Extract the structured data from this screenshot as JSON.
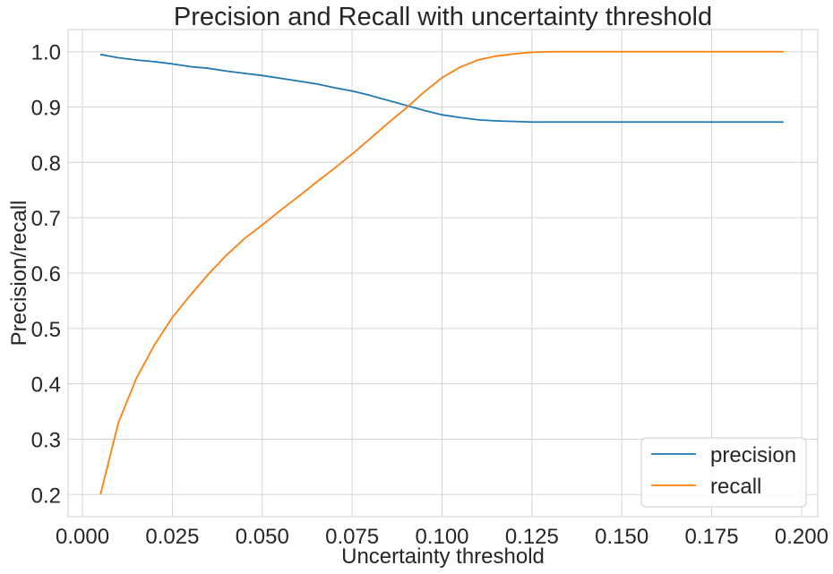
{
  "chart_data": {
    "type": "line",
    "title": "Precision and Recall with uncertainty threshold",
    "xlabel": "Uncertainty threshold",
    "ylabel": "Precision/recall",
    "xlim": [
      -0.004,
      0.2045
    ],
    "ylim": [
      0.16,
      1.04
    ],
    "xticks": [
      0.0,
      0.025,
      0.05,
      0.075,
      0.1,
      0.125,
      0.15,
      0.175,
      0.2
    ],
    "xtick_labels": [
      "0.000",
      "0.025",
      "0.050",
      "0.075",
      "0.100",
      "0.125",
      "0.150",
      "0.175",
      "0.200"
    ],
    "yticks": [
      0.2,
      0.3,
      0.4,
      0.5,
      0.6,
      0.7,
      0.8,
      0.9,
      1.0
    ],
    "ytick_labels": [
      "0.2",
      "0.3",
      "0.4",
      "0.5",
      "0.6",
      "0.7",
      "0.8",
      "0.9",
      "1.0"
    ],
    "grid": true,
    "legend_position": "lower-right",
    "x": [
      0.005,
      0.01,
      0.015,
      0.02,
      0.025,
      0.03,
      0.035,
      0.04,
      0.045,
      0.05,
      0.055,
      0.06,
      0.065,
      0.07,
      0.075,
      0.08,
      0.085,
      0.09,
      0.095,
      0.1,
      0.105,
      0.11,
      0.115,
      0.12,
      0.125,
      0.13,
      0.135,
      0.14,
      0.145,
      0.15,
      0.155,
      0.16,
      0.165,
      0.17,
      0.175,
      0.18,
      0.185,
      0.19,
      0.195
    ],
    "series": [
      {
        "name": "precision",
        "color": "#1f77b4",
        "values": [
          0.995,
          0.989,
          0.985,
          0.982,
          0.978,
          0.973,
          0.97,
          0.965,
          0.961,
          0.957,
          0.952,
          0.947,
          0.942,
          0.935,
          0.929,
          0.921,
          0.912,
          0.903,
          0.894,
          0.886,
          0.881,
          0.877,
          0.875,
          0.874,
          0.873,
          0.873,
          0.873,
          0.873,
          0.873,
          0.873,
          0.873,
          0.873,
          0.873,
          0.873,
          0.873,
          0.873,
          0.873,
          0.873,
          0.873
        ]
      },
      {
        "name": "recall",
        "color": "#ff7f0e",
        "values": [
          0.2,
          0.33,
          0.41,
          0.47,
          0.52,
          0.56,
          0.598,
          0.632,
          0.662,
          0.687,
          0.713,
          0.738,
          0.764,
          0.789,
          0.815,
          0.843,
          0.871,
          0.898,
          0.927,
          0.953,
          0.972,
          0.985,
          0.992,
          0.996,
          0.999,
          1.0,
          1.0,
          1.0,
          1.0,
          1.0,
          1.0,
          1.0,
          1.0,
          1.0,
          1.0,
          1.0,
          1.0,
          1.0,
          1.0
        ]
      }
    ]
  }
}
